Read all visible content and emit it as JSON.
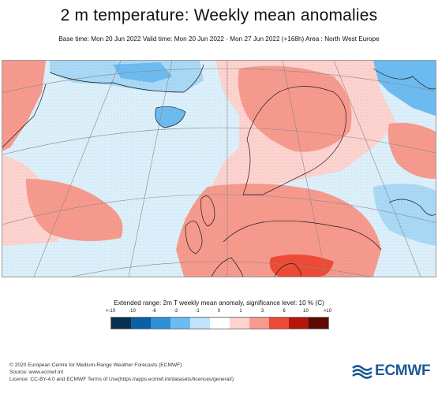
{
  "header": {
    "title": "2 m temperature: Weekly mean anomalies",
    "subtitle": "Base time: Mon 20 Jun 2022 Valid time: Mon 20 Jun 2022 - Mon 27 Jun 2022 (+168h) Area : North West Europe"
  },
  "map": {
    "region": "North West Europe",
    "dominant_signal": "warm anomalies over Scandinavia, central and eastern Europe; cool anomalies west of Greenland/Iceland and NW Russia"
  },
  "legend": {
    "title": "Extended range: 2m T weekly mean anomaly, significance level: 10 % (C)",
    "tick_labels": [
      "<-10",
      "-10",
      "-6",
      "-3",
      "-1",
      "0",
      "1",
      "3",
      "6",
      "10",
      ">10"
    ],
    "colors": [
      "#08304f",
      "#0b5ea8",
      "#2f8fd9",
      "#6cbcf2",
      "#bfe4fa",
      "#ffffff",
      "#fdd3cf",
      "#f79a8e",
      "#ef4a35",
      "#b5160b",
      "#5e0a05"
    ]
  },
  "footer": {
    "credit_lines": [
      "© 2020 European Centre for Medium-Range Weather Forecasts (ECMWF)",
      "Source: www.ecmwf.int",
      "Licence: CC-BY-4.0 and ECMWF Terms of Use(https://apps.ecmwf.int/datasets/licences/general/)"
    ],
    "logo_text": "ECMWF"
  }
}
